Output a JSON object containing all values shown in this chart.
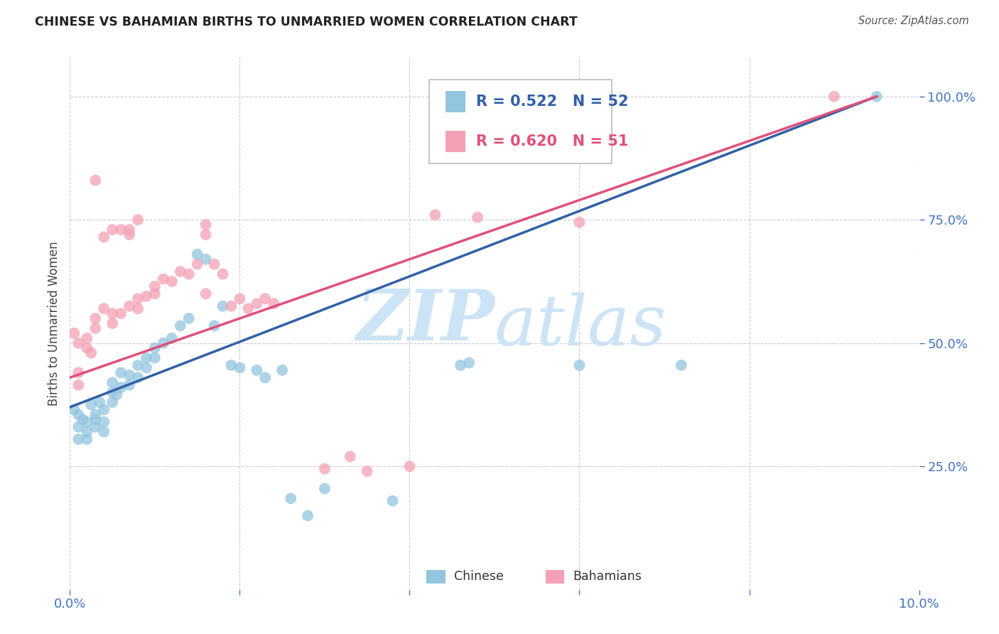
{
  "title": "CHINESE VS BAHAMIAN BIRTHS TO UNMARRIED WOMEN CORRELATION CHART",
  "source": "Source: ZipAtlas.com",
  "ylabel": "Births to Unmarried Women",
  "color_chinese": "#92c5de",
  "color_bahamian": "#f4a0b5",
  "line_color_chinese": "#3060a8",
  "line_color_bahamian": "#e0507a",
  "watermark_zip": "ZIP",
  "watermark_atlas": "atlas",
  "watermark_color": "#cce4f5",
  "xmin": 0.0,
  "xmax": 0.1,
  "ymin": 0.0,
  "ymax": 1.08,
  "yticks": [
    0.25,
    0.5,
    0.75,
    1.0
  ],
  "ytick_labels": [
    "25.0%",
    "50.0%",
    "75.0%",
    "100.0%"
  ],
  "xticks": [
    0.0,
    0.02,
    0.04,
    0.06,
    0.08,
    0.1
  ],
  "xtick_labels": [
    "0.0%",
    "",
    "",
    "",
    "",
    "10.0%"
  ],
  "chinese_line_x0": 0.0,
  "chinese_line_y0": 0.37,
  "chinese_line_x1": 0.095,
  "chinese_line_y1": 1.0,
  "bahamian_line_x0": 0.0,
  "bahamian_line_y0": 0.43,
  "bahamian_line_x1": 0.095,
  "bahamian_line_y1": 1.0,
  "chinese_points": [
    [
      0.0005,
      0.365
    ],
    [
      0.001,
      0.355
    ],
    [
      0.001,
      0.33
    ],
    [
      0.001,
      0.305
    ],
    [
      0.0015,
      0.345
    ],
    [
      0.002,
      0.34
    ],
    [
      0.002,
      0.32
    ],
    [
      0.002,
      0.305
    ],
    [
      0.0025,
      0.375
    ],
    [
      0.003,
      0.355
    ],
    [
      0.003,
      0.345
    ],
    [
      0.003,
      0.33
    ],
    [
      0.0035,
      0.38
    ],
    [
      0.004,
      0.365
    ],
    [
      0.004,
      0.34
    ],
    [
      0.004,
      0.32
    ],
    [
      0.005,
      0.42
    ],
    [
      0.005,
      0.4
    ],
    [
      0.005,
      0.38
    ],
    [
      0.0055,
      0.395
    ],
    [
      0.006,
      0.44
    ],
    [
      0.006,
      0.41
    ],
    [
      0.007,
      0.435
    ],
    [
      0.007,
      0.415
    ],
    [
      0.008,
      0.455
    ],
    [
      0.008,
      0.43
    ],
    [
      0.009,
      0.47
    ],
    [
      0.009,
      0.45
    ],
    [
      0.01,
      0.49
    ],
    [
      0.01,
      0.47
    ],
    [
      0.011,
      0.5
    ],
    [
      0.012,
      0.51
    ],
    [
      0.013,
      0.535
    ],
    [
      0.014,
      0.55
    ],
    [
      0.015,
      0.68
    ],
    [
      0.016,
      0.67
    ],
    [
      0.017,
      0.535
    ],
    [
      0.018,
      0.575
    ],
    [
      0.019,
      0.455
    ],
    [
      0.02,
      0.45
    ],
    [
      0.022,
      0.445
    ],
    [
      0.023,
      0.43
    ],
    [
      0.025,
      0.445
    ],
    [
      0.026,
      0.185
    ],
    [
      0.028,
      0.15
    ],
    [
      0.03,
      0.205
    ],
    [
      0.038,
      0.18
    ],
    [
      0.046,
      0.455
    ],
    [
      0.047,
      0.46
    ],
    [
      0.06,
      0.455
    ],
    [
      0.072,
      0.455
    ],
    [
      0.095,
      1.0
    ]
  ],
  "bahamian_points": [
    [
      0.0005,
      0.52
    ],
    [
      0.001,
      0.5
    ],
    [
      0.001,
      0.44
    ],
    [
      0.001,
      0.415
    ],
    [
      0.002,
      0.51
    ],
    [
      0.002,
      0.49
    ],
    [
      0.0025,
      0.48
    ],
    [
      0.003,
      0.55
    ],
    [
      0.003,
      0.53
    ],
    [
      0.004,
      0.57
    ],
    [
      0.005,
      0.56
    ],
    [
      0.005,
      0.54
    ],
    [
      0.006,
      0.56
    ],
    [
      0.007,
      0.575
    ],
    [
      0.008,
      0.59
    ],
    [
      0.008,
      0.57
    ],
    [
      0.009,
      0.595
    ],
    [
      0.01,
      0.615
    ],
    [
      0.01,
      0.6
    ],
    [
      0.011,
      0.63
    ],
    [
      0.012,
      0.625
    ],
    [
      0.013,
      0.645
    ],
    [
      0.014,
      0.64
    ],
    [
      0.015,
      0.66
    ],
    [
      0.016,
      0.6
    ],
    [
      0.017,
      0.66
    ],
    [
      0.018,
      0.64
    ],
    [
      0.019,
      0.575
    ],
    [
      0.02,
      0.59
    ],
    [
      0.021,
      0.57
    ],
    [
      0.022,
      0.58
    ],
    [
      0.023,
      0.59
    ],
    [
      0.024,
      0.58
    ],
    [
      0.003,
      0.83
    ],
    [
      0.004,
      0.715
    ],
    [
      0.005,
      0.73
    ],
    [
      0.006,
      0.73
    ],
    [
      0.007,
      0.73
    ],
    [
      0.007,
      0.72
    ],
    [
      0.008,
      0.75
    ],
    [
      0.016,
      0.74
    ],
    [
      0.016,
      0.72
    ],
    [
      0.03,
      0.245
    ],
    [
      0.033,
      0.27
    ],
    [
      0.035,
      0.24
    ],
    [
      0.04,
      0.25
    ],
    [
      0.043,
      0.76
    ],
    [
      0.048,
      0.755
    ],
    [
      0.06,
      0.745
    ],
    [
      0.09,
      1.0
    ]
  ]
}
